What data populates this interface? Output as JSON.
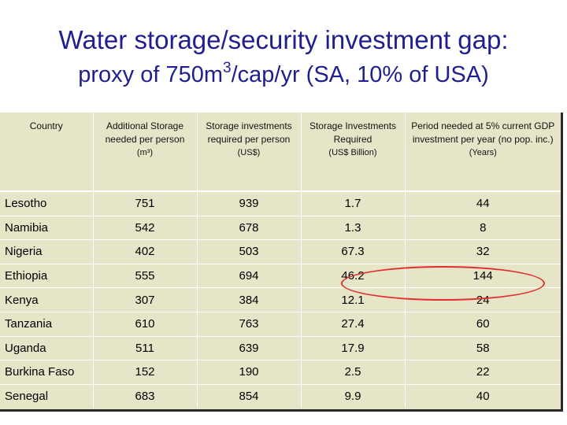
{
  "title": {
    "line1": "Water storage/security investment gap:",
    "line2_pre": "proxy of 750m",
    "line2_sup": "3",
    "line2_post": "/cap/yr (SA, 10% of USA)"
  },
  "table": {
    "headers": [
      {
        "main": "Country",
        "sub": ""
      },
      {
        "main": "Additional Storage needed per person",
        "sub": "(m³)"
      },
      {
        "main": "Storage investments required per person",
        "sub": "(US$)"
      },
      {
        "main": "Storage Investments Required",
        "sub": "(US$ Billion)"
      },
      {
        "main": "Period needed at 5% current GDP investment per year (no pop. inc.)",
        "sub": "(Years)"
      }
    ],
    "rows": [
      [
        "Lesotho",
        "751",
        "939",
        "1.7",
        "44"
      ],
      [
        "Namibia",
        "542",
        "678",
        "1.3",
        "8"
      ],
      [
        "Nigeria",
        "402",
        "503",
        "67.3",
        "32"
      ],
      [
        "Ethiopia",
        "555",
        "694",
        "46.2",
        "144"
      ],
      [
        "Kenya",
        "307",
        "384",
        "12.1",
        "24"
      ],
      [
        "Tanzania",
        "610",
        "763",
        "27.4",
        "60"
      ],
      [
        "Uganda",
        "511",
        "639",
        "17.9",
        "58"
      ],
      [
        "Burkina Faso",
        "152",
        "190",
        "2.5",
        "22"
      ],
      [
        "Senegal",
        "683",
        "854",
        "9.9",
        "40"
      ]
    ]
  },
  "colors": {
    "title": "#1f1f8f",
    "table_bg": "#e7e5c8",
    "highlight": "#e03030"
  }
}
